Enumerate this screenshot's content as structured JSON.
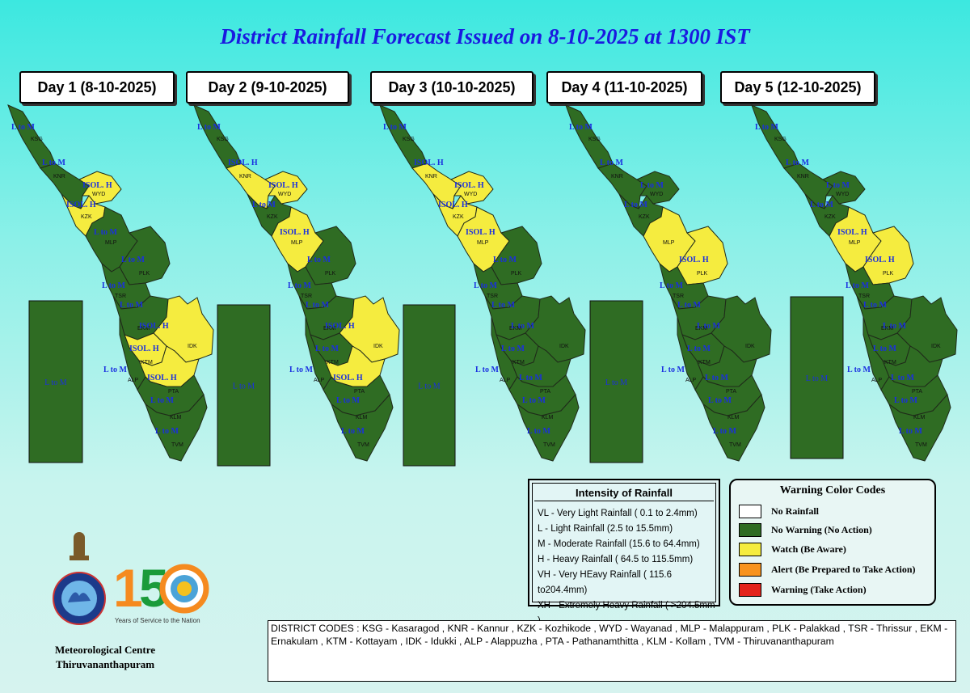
{
  "title": "District Rainfall Forecast Issued on  8-10-2025 at 1300 IST",
  "colors": {
    "green": "#2f6c23",
    "yellow": "#f5ec3f",
    "white": "#ffffff",
    "orange": "#f7931e",
    "red": "#e3231b",
    "label_blue": "#1a2fe0"
  },
  "days": [
    {
      "label": "Day 1 (8-10-2025)",
      "offshore": "L to M"
    },
    {
      "label": "Day 2 (9-10-2025)",
      "offshore": "L to M"
    },
    {
      "label": "Day 3 (10-10-2025)",
      "offshore": "L to M"
    },
    {
      "label": "Day 4 (11-10-2025)",
      "offshore": "L to M"
    },
    {
      "label": "Day 5 (12-10-2025)",
      "offshore": "L to M"
    }
  ],
  "district_codes_order": [
    "KSG",
    "KNR",
    "WYD",
    "KZK",
    "MLP",
    "PLK",
    "TSR",
    "EKM",
    "IDK",
    "KTM",
    "ALP",
    "PTA",
    "KLM",
    "TVM"
  ],
  "forecast": [
    {
      "KSG": {
        "w": "green",
        "t": "L to M"
      },
      "KNR": {
        "w": "green",
        "t": "L to M"
      },
      "WYD": {
        "w": "yellow",
        "t": "ISOL. H"
      },
      "KZK": {
        "w": "yellow",
        "t": "ISOL. H"
      },
      "MLP": {
        "w": "green",
        "t": "L to M"
      },
      "PLK": {
        "w": "green",
        "t": "L to M"
      },
      "TSR": {
        "w": "green",
        "t": "L to M"
      },
      "EKM": {
        "w": "green",
        "t": "L to M"
      },
      "IDK": {
        "w": "yellow",
        "t": "ISOL. H"
      },
      "KTM": {
        "w": "yellow",
        "t": "ISOL. H"
      },
      "ALP": {
        "w": "green",
        "t": "L to M"
      },
      "PTA": {
        "w": "yellow",
        "t": "ISOL. H"
      },
      "KLM": {
        "w": "green",
        "t": "L to M"
      },
      "TVM": {
        "w": "green",
        "t": "L to M"
      }
    },
    {
      "KSG": {
        "w": "green",
        "t": "L to M"
      },
      "KNR": {
        "w": "yellow",
        "t": "ISOL. H"
      },
      "WYD": {
        "w": "yellow",
        "t": "ISOL. H"
      },
      "KZK": {
        "w": "green",
        "t": "L to M"
      },
      "MLP": {
        "w": "yellow",
        "t": "ISOL. H"
      },
      "PLK": {
        "w": "green",
        "t": "L to M"
      },
      "TSR": {
        "w": "green",
        "t": "L to M"
      },
      "EKM": {
        "w": "green",
        "t": "L to M"
      },
      "IDK": {
        "w": "yellow",
        "t": "ISOL. H"
      },
      "KTM": {
        "w": "green",
        "t": "L to M"
      },
      "ALP": {
        "w": "green",
        "t": "L to M"
      },
      "PTA": {
        "w": "yellow",
        "t": "ISOL. H"
      },
      "KLM": {
        "w": "green",
        "t": "L to M"
      },
      "TVM": {
        "w": "green",
        "t": "L to M"
      }
    },
    {
      "KSG": {
        "w": "green",
        "t": "L to M"
      },
      "KNR": {
        "w": "yellow",
        "t": "ISOL. H"
      },
      "WYD": {
        "w": "yellow",
        "t": "ISOL. H"
      },
      "KZK": {
        "w": "yellow",
        "t": "ISOL. H"
      },
      "MLP": {
        "w": "yellow",
        "t": "ISOL. H"
      },
      "PLK": {
        "w": "green",
        "t": "L to M"
      },
      "TSR": {
        "w": "green",
        "t": "L to M"
      },
      "EKM": {
        "w": "green",
        "t": "L to M"
      },
      "IDK": {
        "w": "green",
        "t": "L to M"
      },
      "KTM": {
        "w": "green",
        "t": "L to M"
      },
      "ALP": {
        "w": "green",
        "t": "L to M"
      },
      "PTA": {
        "w": "green",
        "t": "L to M"
      },
      "KLM": {
        "w": "green",
        "t": "L to M"
      },
      "TVM": {
        "w": "green",
        "t": "L to M"
      }
    },
    {
      "KSG": {
        "w": "green",
        "t": "L to M"
      },
      "KNR": {
        "w": "green",
        "t": "L to M"
      },
      "WYD": {
        "w": "green",
        "t": "L to M"
      },
      "KZK": {
        "w": "green",
        "t": "L to M"
      },
      "MLP": {
        "w": "yellow",
        "t": ""
      },
      "PLK": {
        "w": "yellow",
        "t": "ISOL. H"
      },
      "TSR": {
        "w": "green",
        "t": "L to M"
      },
      "EKM": {
        "w": "green",
        "t": "L to M"
      },
      "IDK": {
        "w": "green",
        "t": "L to M"
      },
      "KTM": {
        "w": "green",
        "t": "L to M"
      },
      "ALP": {
        "w": "green",
        "t": "L to M"
      },
      "PTA": {
        "w": "green",
        "t": "L to M"
      },
      "KLM": {
        "w": "green",
        "t": "L to M"
      },
      "TVM": {
        "w": "green",
        "t": "L to M"
      }
    },
    {
      "KSG": {
        "w": "green",
        "t": "L to M"
      },
      "KNR": {
        "w": "green",
        "t": "L to M"
      },
      "WYD": {
        "w": "green",
        "t": "L to M"
      },
      "KZK": {
        "w": "green",
        "t": "L to M"
      },
      "MLP": {
        "w": "yellow",
        "t": "ISOL. H"
      },
      "PLK": {
        "w": "yellow",
        "t": "ISOL. H"
      },
      "TSR": {
        "w": "green",
        "t": "L to M"
      },
      "EKM": {
        "w": "green",
        "t": "L to M"
      },
      "IDK": {
        "w": "green",
        "t": "L to M"
      },
      "KTM": {
        "w": "green",
        "t": "L to M"
      },
      "ALP": {
        "w": "green",
        "t": "L to M"
      },
      "PTA": {
        "w": "green",
        "t": "L to M"
      },
      "KLM": {
        "w": "green",
        "t": "L to M"
      },
      "TVM": {
        "w": "green",
        "t": "L to M"
      }
    }
  ],
  "intensity": {
    "heading": "Intensity of Rainfall",
    "rows": [
      "VL - Very Light Rainfall ( 0.1 to 2.4mm)",
      "L  - Light Rainfall (2.5 to 15.5mm)",
      "M  - Moderate Rainfall (15.6 to 64.4mm)",
      "H  - Heavy Rainfall ( 64.5 to 115.5mm)",
      "VH - Very HEavy Rainfall ( 115.6 to204.4mm)",
      "XH - Extremely Heavy Rainfall ( >204.5mm )"
    ]
  },
  "warning_codes": {
    "heading": "Warning Color Codes",
    "items": [
      {
        "label": "No Rainfall",
        "color": "#ffffff"
      },
      {
        "label": "No Warning (No Action)",
        "color": "#2f6c23"
      },
      {
        "label": "Watch (Be Aware)",
        "color": "#f5ec3f"
      },
      {
        "label": "Alert (Be Prepared to Take Action)",
        "color": "#f7931e"
      },
      {
        "label": "Warning (Take Action)",
        "color": "#e3231b"
      }
    ]
  },
  "district_codes_text": "DISTRICT CODES : KSG - Kasaragod , KNR - Kannur , KZK - Kozhikode , WYD - Wayanad , MLP - Malappuram , PLK - Palakkad , TSR - Thrissur , EKM - Ernakulam , KTM - Kottayam , IDK - Idukki , ALP - Alappuzha ,      PTA - Pathanamthitta , KLM - Kollam , TVM - Thiruvananthapuram",
  "org": {
    "line1": "Meteorological Centre",
    "line2": "Thiruvananthapuram"
  },
  "logo150": {
    "number": "150",
    "tagline": "Years of Service to the Nation"
  }
}
